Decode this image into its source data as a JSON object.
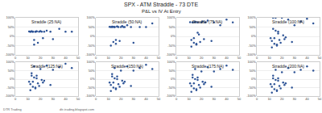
{
  "title": "SPX - ATM Straddle - 73 DTE",
  "subtitle": "P&L vs IV At Entry",
  "footer_left": "DTR Trading",
  "footer_right": "dtr-trading.blogspot.com",
  "chart_data": [
    {
      "type": "scatter",
      "title": "Straddle (25:NA)",
      "color": "#2F5597",
      "marker": "circle",
      "grid": true,
      "x": [
        11,
        12,
        13,
        14,
        15,
        16,
        17,
        18,
        19,
        20,
        21,
        22,
        12,
        13,
        14,
        15,
        16,
        17,
        23,
        25,
        28,
        30,
        35,
        40,
        45
      ],
      "values": [
        26,
        25,
        27,
        25,
        -20,
        25,
        26,
        -35,
        25,
        28,
        25,
        -10,
        25,
        26,
        25,
        -45,
        25,
        27,
        25,
        30,
        25,
        -15,
        40,
        25,
        25
      ],
      "xlim": [
        0,
        50
      ],
      "xticks": [
        0,
        10,
        20,
        30,
        40,
        50
      ],
      "ylim": [
        -100,
        100
      ],
      "yticks": [
        {
          "value": -100,
          "label": "-100%"
        },
        {
          "value": -50,
          "label": "-50%"
        },
        {
          "value": 0,
          "label": "0%"
        },
        {
          "value": 50,
          "label": "50%"
        },
        {
          "value": 100,
          "label": "100%"
        }
      ]
    },
    {
      "type": "scatter",
      "title": "Straddle (50:NA)",
      "color": "#2F5597",
      "marker": "circle",
      "grid": true,
      "x": [
        11,
        12,
        13,
        14,
        15,
        16,
        17,
        18,
        19,
        20,
        21,
        22,
        12,
        13,
        14,
        15,
        16,
        17,
        23,
        25,
        28,
        30,
        35,
        40,
        45
      ],
      "values": [
        51,
        50,
        52,
        -30,
        50,
        -40,
        53,
        50,
        -25,
        50,
        55,
        50,
        -50,
        50,
        51,
        50,
        -20,
        52,
        50,
        60,
        50,
        -35,
        50,
        50,
        70
      ],
      "xlim": [
        0,
        50
      ],
      "xticks": [
        0,
        10,
        20,
        30,
        40,
        50
      ],
      "ylim": [
        -100,
        100
      ],
      "yticks": [
        {
          "value": -100,
          "label": "-100%"
        },
        {
          "value": -50,
          "label": "-50%"
        },
        {
          "value": 0,
          "label": "0%"
        },
        {
          "value": 50,
          "label": "50%"
        },
        {
          "value": 100,
          "label": "100%"
        }
      ]
    },
    {
      "type": "scatter",
      "title": "Straddle (75:NA)",
      "color": "#2F5597",
      "marker": "circle",
      "grid": true,
      "x": [
        11,
        12,
        13,
        14,
        15,
        16,
        17,
        18,
        19,
        20,
        21,
        22,
        12,
        13,
        14,
        15,
        16,
        17,
        23,
        25,
        28,
        30,
        35,
        40,
        45
      ],
      "values": [
        76,
        -20,
        75,
        -35,
        78,
        -45,
        75,
        10,
        -30,
        75,
        80,
        -15,
        -55,
        75,
        -10,
        76,
        -40,
        20,
        75,
        85,
        -25,
        75,
        60,
        90,
        75
      ],
      "xlim": [
        0,
        50
      ],
      "xticks": [
        0,
        10,
        20,
        30,
        40,
        50
      ],
      "ylim": [
        -100,
        100
      ],
      "yticks": [
        {
          "value": -100,
          "label": "-100%"
        },
        {
          "value": -50,
          "label": "-50%"
        },
        {
          "value": 0,
          "label": "0%"
        },
        {
          "value": 50,
          "label": "50%"
        },
        {
          "value": 100,
          "label": "100%"
        }
      ]
    },
    {
      "type": "scatter",
      "title": "Straddle (100:NA)",
      "color": "#2F5597",
      "marker": "circle",
      "grid": true,
      "x": [
        11,
        12,
        13,
        14,
        15,
        16,
        17,
        18,
        19,
        20,
        21,
        22,
        12,
        13,
        14,
        15,
        16,
        17,
        23,
        25,
        28,
        30,
        35,
        40,
        45
      ],
      "values": [
        -10,
        -25,
        100,
        -40,
        30,
        -50,
        15,
        -20,
        -35,
        100,
        5,
        -15,
        -60,
        40,
        -10,
        100,
        -45,
        25,
        -5,
        90,
        -30,
        60,
        80,
        95,
        70
      ],
      "xlim": [
        0,
        50
      ],
      "xticks": [
        0,
        10,
        20,
        30,
        40,
        50
      ],
      "ylim": [
        -100,
        100
      ],
      "yticks": [
        {
          "value": -100,
          "label": "-100%"
        },
        {
          "value": -50,
          "label": "-50%"
        },
        {
          "value": 0,
          "label": "0%"
        },
        {
          "value": 50,
          "label": "50%"
        },
        {
          "value": 100,
          "label": "100%"
        }
      ]
    },
    {
      "type": "scatter",
      "title": "Straddle (125:NA)",
      "color": "#2F5597",
      "marker": "circle",
      "grid": true,
      "x": [
        11,
        12,
        13,
        14,
        15,
        16,
        17,
        18,
        19,
        20,
        21,
        22,
        12,
        13,
        14,
        15,
        16,
        17,
        23,
        25,
        28,
        30,
        35,
        40,
        45
      ],
      "values": [
        -15,
        -30,
        20,
        -45,
        10,
        -55,
        5,
        -25,
        -40,
        60,
        -5,
        -20,
        -65,
        35,
        -15,
        75,
        -50,
        20,
        -10,
        80,
        -35,
        55,
        70,
        90,
        65
      ],
      "xlim": [
        0,
        50
      ],
      "xticks": [
        0,
        10,
        20,
        30,
        40,
        50
      ],
      "ylim": [
        -100,
        100
      ],
      "yticks": [
        {
          "value": -100,
          "label": "-100%"
        },
        {
          "value": -50,
          "label": "-50%"
        },
        {
          "value": 0,
          "label": "0%"
        },
        {
          "value": 50,
          "label": "50%"
        },
        {
          "value": 100,
          "label": "100%"
        }
      ]
    },
    {
      "type": "scatter",
      "title": "Straddle (150:NA)",
      "color": "#2F5597",
      "marker": "circle",
      "grid": true,
      "x": [
        11,
        12,
        13,
        14,
        15,
        16,
        17,
        18,
        19,
        20,
        21,
        22,
        12,
        13,
        14,
        15,
        16,
        17,
        23,
        25,
        28,
        30,
        35,
        40,
        45
      ],
      "values": [
        -20,
        -35,
        15,
        -50,
        5,
        -60,
        0,
        -30,
        -45,
        50,
        -10,
        -25,
        -70,
        30,
        -20,
        65,
        -55,
        15,
        -15,
        75,
        -40,
        50,
        65,
        85,
        60
      ],
      "xlim": [
        0,
        50
      ],
      "xticks": [
        0,
        10,
        20,
        30,
        40,
        50
      ],
      "ylim": [
        -100,
        100
      ],
      "yticks": [
        {
          "value": -100,
          "label": "-100%"
        },
        {
          "value": -50,
          "label": "-50%"
        },
        {
          "value": 0,
          "label": "0%"
        },
        {
          "value": 50,
          "label": "50%"
        },
        {
          "value": 100,
          "label": "100%"
        }
      ]
    },
    {
      "type": "scatter",
      "title": "Straddle (175:NA)",
      "color": "#2F5597",
      "marker": "circle",
      "grid": true,
      "x": [
        11,
        12,
        13,
        14,
        15,
        16,
        17,
        18,
        19,
        20,
        21,
        22,
        12,
        13,
        14,
        15,
        16,
        17,
        23,
        25,
        28,
        30,
        35,
        40,
        45
      ],
      "values": [
        -25,
        -40,
        10,
        -55,
        0,
        -65,
        -5,
        -35,
        -50,
        45,
        -15,
        -30,
        -75,
        25,
        -25,
        60,
        -60,
        10,
        -20,
        70,
        -45,
        45,
        60,
        80,
        55
      ],
      "xlim": [
        0,
        50
      ],
      "xticks": [
        0,
        10,
        20,
        30,
        40,
        50
      ],
      "ylim": [
        -100,
        100
      ],
      "yticks": [
        {
          "value": -100,
          "label": "-100%"
        },
        {
          "value": -50,
          "label": "-50%"
        },
        {
          "value": 0,
          "label": "0%"
        },
        {
          "value": 50,
          "label": "50%"
        },
        {
          "value": 100,
          "label": "100%"
        }
      ]
    },
    {
      "type": "scatter",
      "title": "Straddle (200:NA)",
      "color": "#2F5597",
      "marker": "circle",
      "grid": true,
      "x": [
        11,
        12,
        13,
        14,
        15,
        16,
        17,
        18,
        19,
        20,
        21,
        22,
        12,
        13,
        14,
        15,
        16,
        17,
        23,
        25,
        28,
        30,
        35,
        40,
        45
      ],
      "values": [
        -30,
        -45,
        5,
        -60,
        -5,
        -70,
        -10,
        -40,
        -55,
        40,
        -20,
        -35,
        -80,
        20,
        -30,
        55,
        -65,
        5,
        -25,
        65,
        -50,
        40,
        55,
        75,
        50
      ],
      "xlim": [
        0,
        50
      ],
      "xticks": [
        0,
        10,
        20,
        30,
        40,
        50
      ],
      "ylim": [
        -100,
        100
      ],
      "yticks": [
        {
          "value": -100,
          "label": "-100%"
        },
        {
          "value": -50,
          "label": "-50%"
        },
        {
          "value": 0,
          "label": "0%"
        },
        {
          "value": 50,
          "label": "50%"
        },
        {
          "value": 100,
          "label": "100%"
        }
      ]
    }
  ]
}
